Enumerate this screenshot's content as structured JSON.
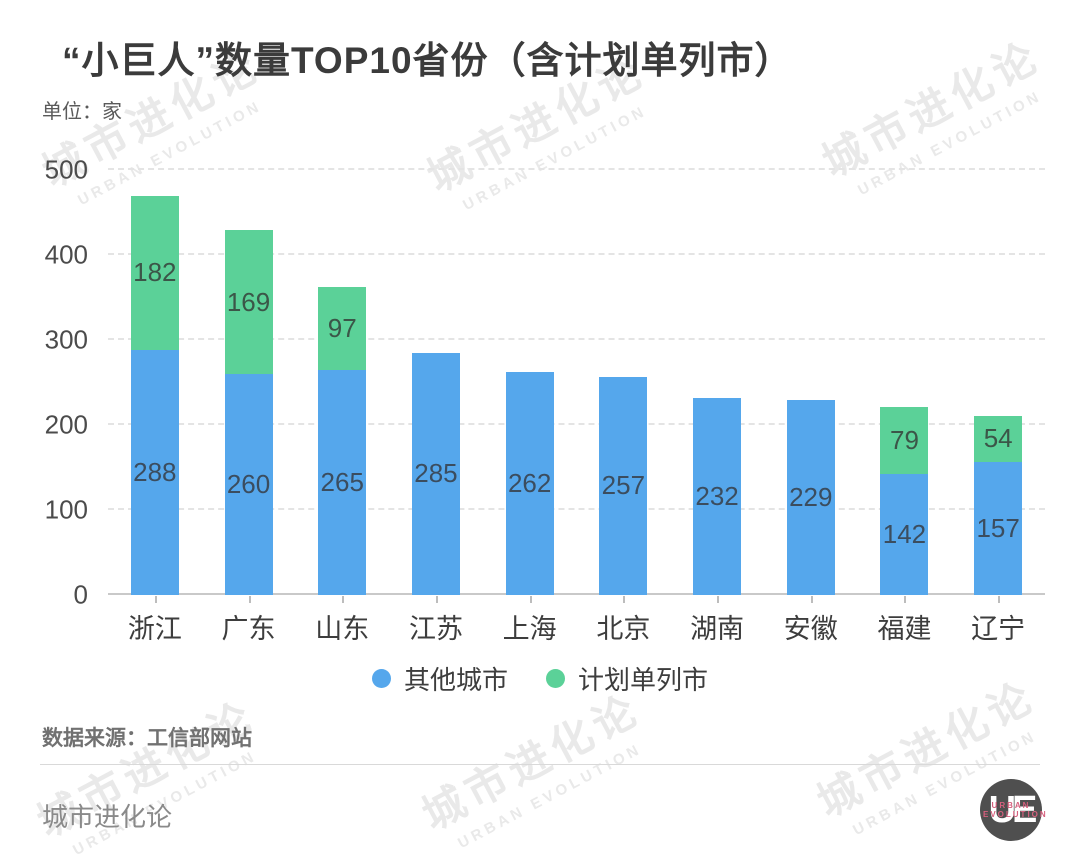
{
  "title": "“小巨人”数量TOP10省份（含计划单列市）",
  "unit_label": "单位：家",
  "chart_data": {
    "type": "bar",
    "stacked": true,
    "title": "“小巨人”数量TOP10省份（含计划单列市）",
    "unit": "家",
    "categories": [
      "浙江",
      "广东",
      "山东",
      "江苏",
      "上海",
      "北京",
      "湖南",
      "安徽",
      "福建",
      "辽宁"
    ],
    "series": [
      {
        "name": "其他城市",
        "color": "#55a7ec",
        "label_color": "#3b4d5f",
        "values": [
          288,
          260,
          265,
          285,
          262,
          257,
          232,
          229,
          142,
          157
        ]
      },
      {
        "name": "计划单列市",
        "color": "#5bd198",
        "label_color": "#3b5648",
        "values": [
          182,
          169,
          97,
          0,
          0,
          0,
          0,
          0,
          79,
          54
        ]
      }
    ],
    "ylim": [
      0,
      500
    ],
    "yticks": [
      0,
      100,
      200,
      300,
      400,
      500
    ],
    "grid": "horizontal-dashed",
    "legend_position": "bottom"
  },
  "source": "数据来源：工信部网站",
  "brand": "城市进化论",
  "watermark": {
    "cn": "城市进化论",
    "en": "URBAN EVOLUTION"
  },
  "logo": {
    "text": "UE",
    "subtext": "URBAN EVOLUTION"
  }
}
